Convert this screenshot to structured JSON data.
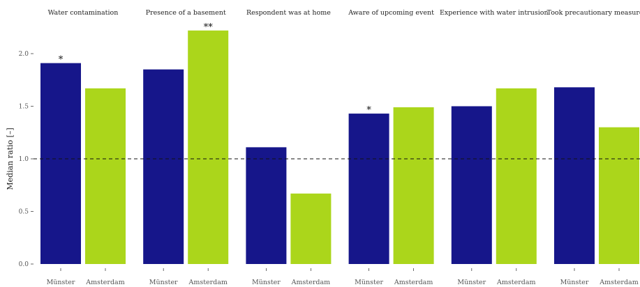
{
  "chart_data": {
    "type": "bar",
    "ylabel": "Median ratio [–]",
    "xlabel": "",
    "ylim": [
      0,
      2.33
    ],
    "yticks": [
      {
        "value": 0.0,
        "label": "0.0"
      },
      {
        "value": 0.5,
        "label": "0.5"
      },
      {
        "value": 1.0,
        "label": "1.0"
      },
      {
        "value": 1.5,
        "label": "1.5"
      },
      {
        "value": 2.0,
        "label": "2.0"
      }
    ],
    "reference_line": 1.0,
    "grid": false,
    "legend": "none",
    "categories": [
      "Münster",
      "Amsterdam"
    ],
    "colors": {
      "Münster": "#16168a",
      "Amsterdam": "#abd61b"
    },
    "facets": [
      {
        "title": "Water contamination",
        "values": [
          1.91,
          1.67
        ],
        "significance": [
          "*",
          ""
        ]
      },
      {
        "title": "Presence of a basement",
        "values": [
          1.85,
          2.22
        ],
        "significance": [
          "",
          "**"
        ]
      },
      {
        "title": "Respondent was at home",
        "values": [
          1.11,
          0.67
        ],
        "significance": [
          "",
          ""
        ]
      },
      {
        "title": "Aware of upcoming event",
        "values": [
          1.43,
          1.49
        ],
        "significance": [
          "*",
          ""
        ]
      },
      {
        "title": "Experience with water intrusion",
        "values": [
          1.5,
          1.67
        ],
        "significance": [
          "",
          ""
        ]
      },
      {
        "title": "Took precautionary measures",
        "values": [
          1.68,
          1.3
        ],
        "significance": [
          "",
          ""
        ]
      }
    ]
  }
}
